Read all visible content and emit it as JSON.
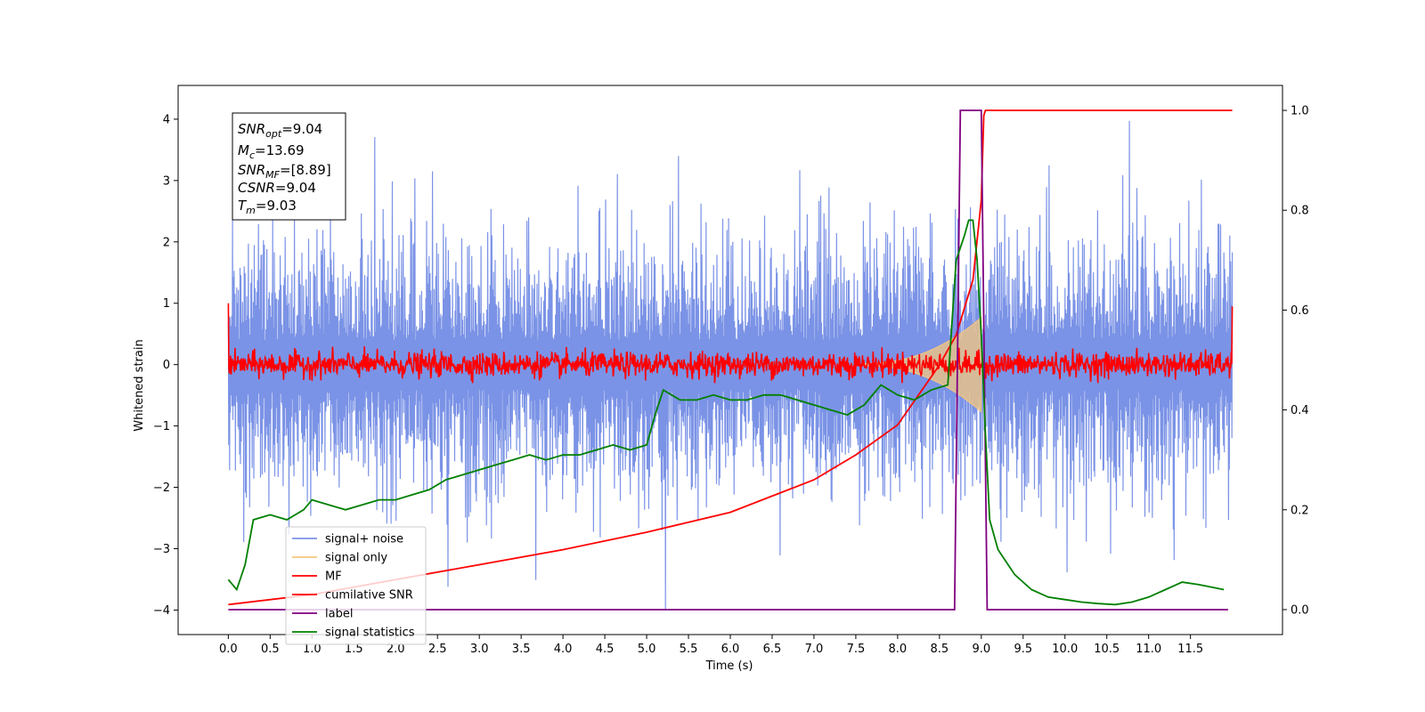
{
  "chart_data": {
    "type": "line",
    "xlabel": "Time (s)",
    "ylabel_left": "Whitened strain",
    "ylabel_right": "",
    "xlim": [
      -0.6,
      12.6
    ],
    "ylim_left": [
      -4.4,
      4.55
    ],
    "ylim_right": [
      -0.05,
      1.05
    ],
    "x_ticks": [
      "0.0",
      "0.5",
      "1.0",
      "1.5",
      "2.0",
      "2.5",
      "3.0",
      "3.5",
      "4.0",
      "4.5",
      "5.0",
      "5.5",
      "6.0",
      "6.5",
      "7.0",
      "7.5",
      "8.0",
      "8.5",
      "9.0",
      "9.5",
      "10.0",
      "10.5",
      "11.0",
      "11.5"
    ],
    "y_ticks_left": [
      "−4",
      "−3",
      "−2",
      "−1",
      "0",
      "1",
      "2",
      "3",
      "4"
    ],
    "y_ticks_right": [
      "0.0",
      "0.2",
      "0.4",
      "0.6",
      "0.8",
      "1.0"
    ],
    "legend": [
      {
        "label": "signal+ noise",
        "color": "#7b93e6"
      },
      {
        "label": "signal only",
        "color": "#f5c77e"
      },
      {
        "label": "MF",
        "color": "#ff0000"
      },
      {
        "label": "cumilative SNR",
        "color": "#ff0000"
      },
      {
        "label": "label",
        "color": "#800080"
      },
      {
        "label": "signal statistics",
        "color": "#008000"
      }
    ],
    "legend_placement": "lower-left",
    "noise_envelope": {
      "t_start": 0.0,
      "t_end": 12.0,
      "typical_amplitude": 2.0,
      "max_amplitude": 4.15,
      "min_amplitude": -4.0
    },
    "signal_only": {
      "t_start": 7.6,
      "t_peak": 9.0,
      "peak_amplitude": 0.75
    },
    "mf_series": {
      "t_start": 0.0,
      "t_end": 12.0,
      "amplitude": 0.25,
      "spike_start": 1.0,
      "spike_end": 0.95
    },
    "cumulative_snr": {
      "x": [
        0.0,
        1.0,
        2.0,
        3.0,
        4.0,
        5.0,
        6.0,
        7.0,
        7.5,
        8.0,
        8.5,
        8.7,
        8.9,
        9.0,
        9.03,
        9.05,
        12.0
      ],
      "y": [
        0.01,
        0.03,
        0.06,
        0.09,
        0.12,
        0.155,
        0.195,
        0.26,
        0.31,
        0.37,
        0.49,
        0.55,
        0.66,
        0.82,
        0.99,
        1.0,
        1.0
      ]
    },
    "label_series": {
      "x": [
        0.0,
        8.68,
        8.75,
        9.0,
        9.07,
        11.95
      ],
      "y": [
        0.0,
        0.0,
        1.0,
        1.0,
        0.0,
        0.0
      ]
    },
    "signal_statistics": {
      "x": [
        0.0,
        0.1,
        0.2,
        0.3,
        0.5,
        0.7,
        0.9,
        1.0,
        1.2,
        1.4,
        1.6,
        1.8,
        2.0,
        2.2,
        2.4,
        2.6,
        2.8,
        3.0,
        3.2,
        3.4,
        3.6,
        3.8,
        4.0,
        4.2,
        4.4,
        4.6,
        4.8,
        5.0,
        5.1,
        5.2,
        5.4,
        5.6,
        5.8,
        6.0,
        6.2,
        6.4,
        6.6,
        6.8,
        7.0,
        7.2,
        7.4,
        7.6,
        7.8,
        8.0,
        8.2,
        8.4,
        8.6,
        8.7,
        8.8,
        8.85,
        8.9,
        8.95,
        9.0,
        9.05,
        9.1,
        9.2,
        9.4,
        9.6,
        9.8,
        10.0,
        10.2,
        10.4,
        10.6,
        10.8,
        11.0,
        11.2,
        11.4,
        11.6,
        11.9
      ],
      "y": [
        0.06,
        0.04,
        0.09,
        0.18,
        0.19,
        0.18,
        0.2,
        0.22,
        0.21,
        0.2,
        0.21,
        0.22,
        0.22,
        0.23,
        0.24,
        0.26,
        0.27,
        0.28,
        0.29,
        0.3,
        0.31,
        0.3,
        0.31,
        0.31,
        0.32,
        0.33,
        0.32,
        0.33,
        0.39,
        0.44,
        0.42,
        0.42,
        0.43,
        0.42,
        0.42,
        0.43,
        0.43,
        0.42,
        0.41,
        0.4,
        0.39,
        0.41,
        0.45,
        0.43,
        0.42,
        0.44,
        0.45,
        0.7,
        0.75,
        0.78,
        0.78,
        0.7,
        0.55,
        0.35,
        0.18,
        0.12,
        0.07,
        0.04,
        0.025,
        0.02,
        0.015,
        0.012,
        0.01,
        0.015,
        0.025,
        0.04,
        0.055,
        0.05,
        0.04
      ]
    }
  },
  "annotation": {
    "snr_opt": {
      "main": "SNR",
      "sub": "opt",
      "value": "=9.04"
    },
    "mc": {
      "main": "M",
      "sub": "c",
      "value": "=13.69"
    },
    "snr_mf": {
      "main": "SNR",
      "sub": "MF",
      "value": "=[8.89]"
    },
    "csnr": {
      "main": "CSNR",
      "value": "=9.04"
    },
    "tm": {
      "main": "T",
      "sub": "m",
      "value": "=9.03"
    }
  }
}
